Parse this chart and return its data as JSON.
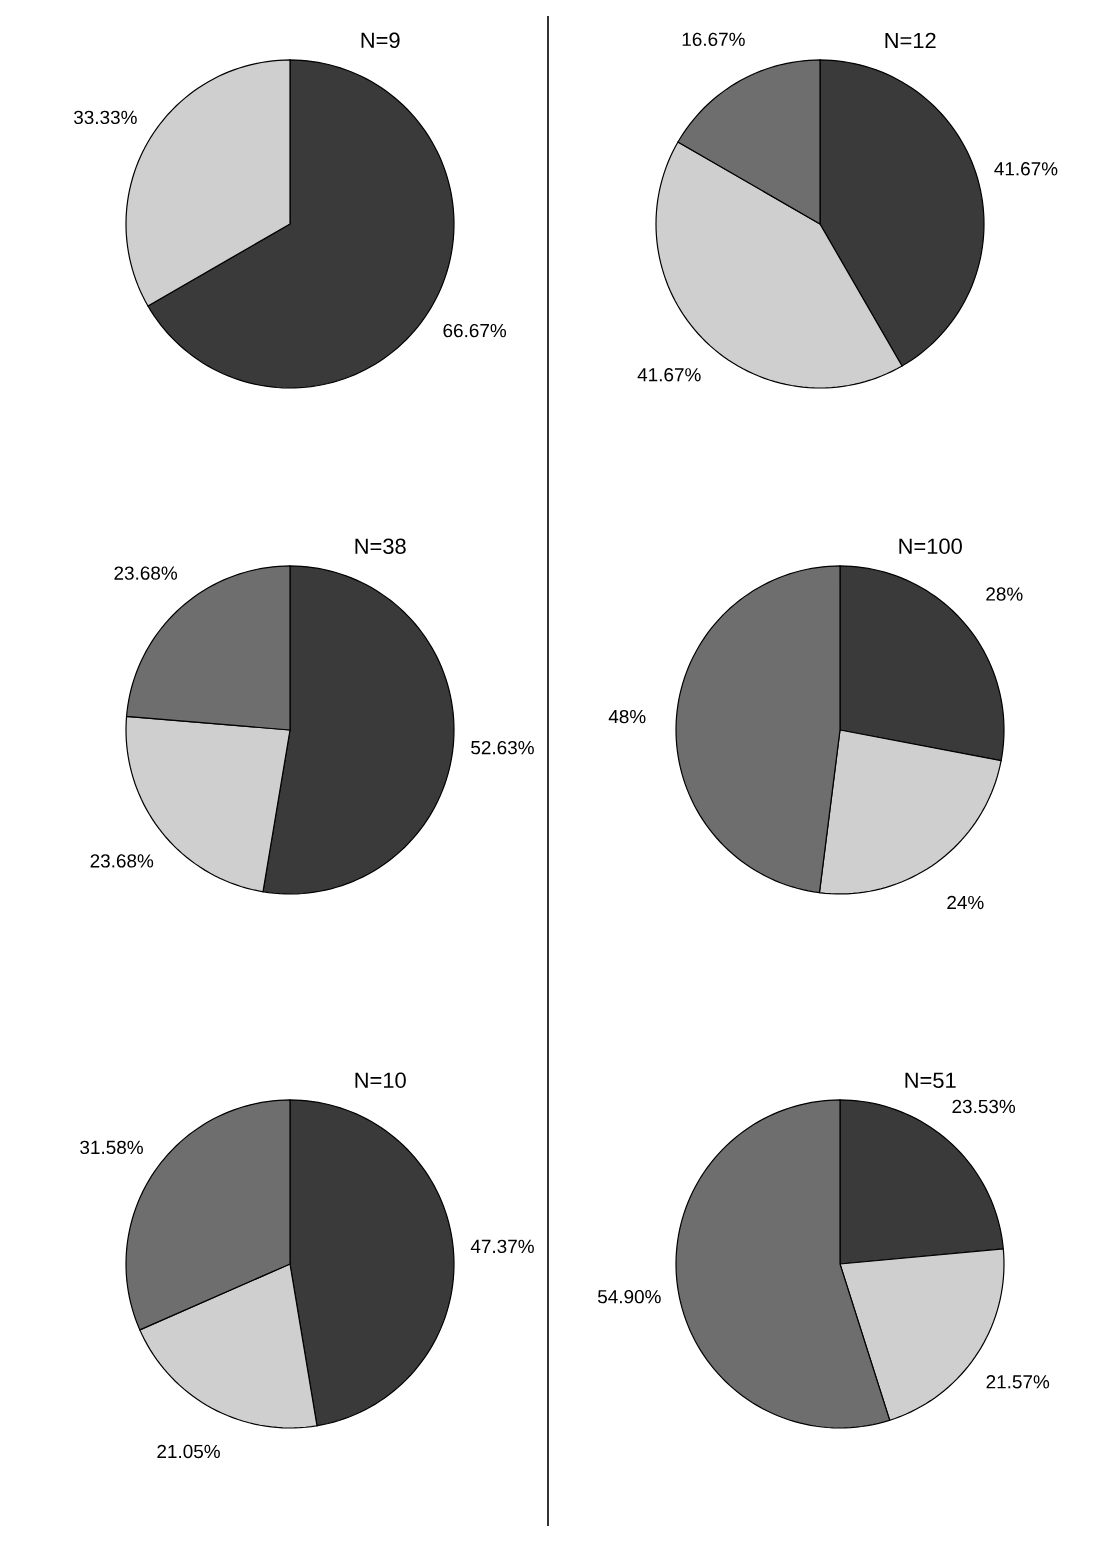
{
  "chart_data": [
    {
      "type": "pie",
      "title": "N=9",
      "categories": [
        null,
        null
      ],
      "values": [
        66.67,
        33.33
      ],
      "colors": [
        "#3a3a3a",
        "#cfcfcf"
      ],
      "value_labels": [
        "66.67%",
        "33.33%"
      ]
    },
    {
      "type": "pie",
      "title": "N=12",
      "categories": [
        null,
        null,
        null
      ],
      "values": [
        41.67,
        41.67,
        16.67
      ],
      "colors": [
        "#3a3a3a",
        "#cfcfcf",
        "#6e6e6e"
      ],
      "value_labels": [
        "41.67%",
        "41.67%",
        "16.67%"
      ]
    },
    {
      "type": "pie",
      "title": "N=38",
      "categories": [
        null,
        null,
        null
      ],
      "values": [
        52.63,
        23.68,
        23.68
      ],
      "colors": [
        "#3a3a3a",
        "#cfcfcf",
        "#6e6e6e"
      ],
      "value_labels": [
        "52.63%",
        "23.68%",
        "23.68%"
      ]
    },
    {
      "type": "pie",
      "title": "N=100",
      "categories": [
        null,
        null,
        null
      ],
      "values": [
        28,
        24,
        48
      ],
      "colors": [
        "#3a3a3a",
        "#cfcfcf",
        "#6e6e6e"
      ],
      "value_labels": [
        "28%",
        "24%",
        "48%"
      ]
    },
    {
      "type": "pie",
      "title": "N=10",
      "categories": [
        null,
        null,
        null
      ],
      "values": [
        47.37,
        21.05,
        31.58
      ],
      "colors": [
        "#3a3a3a",
        "#cfcfcf",
        "#6e6e6e"
      ],
      "value_labels": [
        "47.37%",
        "21.05%",
        "31.58%"
      ]
    },
    {
      "type": "pie",
      "title": "N=51",
      "categories": [
        null,
        null,
        null
      ],
      "values": [
        23.53,
        21.57,
        54.9
      ],
      "colors": [
        "#3a3a3a",
        "#cfcfcf",
        "#6e6e6e"
      ],
      "value_labels": [
        "23.53%",
        "21.57%",
        "54.90%"
      ]
    }
  ]
}
